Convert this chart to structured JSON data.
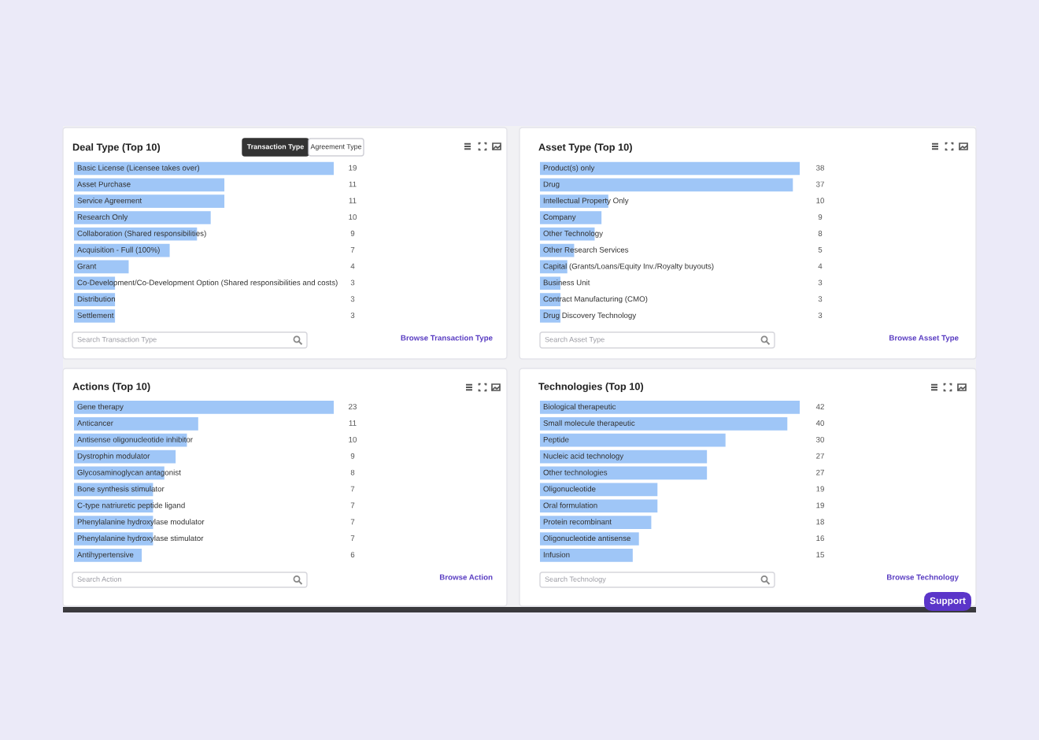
{
  "chart_data": [
    {
      "type": "bar",
      "orientation": "horizontal",
      "title": "Deal Type (Top 10)",
      "categories": [
        "Basic License (Licensee takes over)",
        "Asset Purchase",
        "Service Agreement",
        "Research Only",
        "Collaboration (Shared responsibilities)",
        "Acquisition - Full (100%)",
        "Grant",
        "Co-Development/Co-Development Option (Shared responsibilities and costs)",
        "Distribution",
        "Settlement"
      ],
      "values": [
        19,
        11,
        11,
        10,
        9,
        7,
        4,
        3,
        3,
        3
      ],
      "color": "#9fc6f7",
      "data_labels": true,
      "annotations": [
        "Transaction Type",
        "Agreement Type",
        "Search Transaction Type",
        "Browse Transaction Type"
      ]
    },
    {
      "type": "bar",
      "orientation": "horizontal",
      "title": "Asset Type (Top 10)",
      "categories": [
        "Product(s) only",
        "Drug",
        "Intellectual Property Only",
        "Company",
        "Other Technology",
        "Other Research Services",
        "Capital (Grants/Loans/Equity Inv./Royalty buyouts)",
        "Business Unit",
        "Contract Manufacturing (CMO)",
        "Drug Discovery Technology"
      ],
      "values": [
        38,
        37,
        10,
        9,
        8,
        5,
        4,
        3,
        3,
        3
      ],
      "color": "#9fc6f7",
      "data_labels": true,
      "annotations": [
        "Search Asset Type",
        "Browse Asset Type"
      ]
    },
    {
      "type": "bar",
      "orientation": "horizontal",
      "title": "Actions (Top 10)",
      "categories": [
        "Gene therapy",
        "Anticancer",
        "Antisense oligonucleotide inhibitor",
        "Dystrophin modulator",
        "Glycosaminoglycan antagonist",
        "Bone synthesis stimulator",
        "C-type natriuretic peptide ligand",
        "Phenylalanine hydroxylase modulator",
        "Phenylalanine hydroxylase stimulator",
        "Antihypertensive"
      ],
      "values": [
        23,
        11,
        10,
        9,
        8,
        7,
        7,
        7,
        7,
        6
      ],
      "color": "#9fc6f7",
      "data_labels": true,
      "annotations": [
        "Search Action",
        "Browse Action"
      ]
    },
    {
      "type": "bar",
      "orientation": "horizontal",
      "title": "Technologies (Top 10)",
      "categories": [
        "Biological therapeutic",
        "Small molecule therapeutic",
        "Peptide",
        "Nucleic acid technology",
        "Other technologies",
        "Oligonucleotide",
        "Oral formulation",
        "Protein recombinant",
        "Oligonucleotide antisense",
        "Infusion"
      ],
      "values": [
        42,
        40,
        30,
        27,
        27,
        19,
        19,
        18,
        16,
        15
      ],
      "color": "#9fc6f7",
      "data_labels": true,
      "annotations": [
        "Search Technology",
        "Browse Technology",
        "Support"
      ]
    }
  ]
}
